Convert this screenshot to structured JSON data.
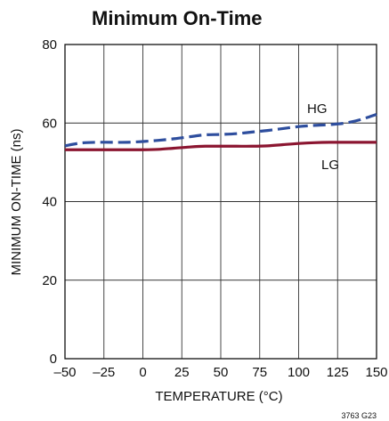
{
  "chart_data": {
    "type": "line",
    "title": "Minimum On-Time",
    "xlabel": "TEMPERATURE (°C)",
    "ylabel": "MINIMUM ON-TIME (ns)",
    "xlim": [
      -50,
      150
    ],
    "ylim": [
      0,
      80
    ],
    "xticks": [
      -50,
      -25,
      0,
      25,
      50,
      75,
      100,
      125,
      150
    ],
    "yticks": [
      0,
      20,
      40,
      60,
      80
    ],
    "xtick_labels": [
      "–50",
      "–25",
      "0",
      "25",
      "50",
      "75",
      "100",
      "125",
      "150"
    ],
    "ytick_labels": [
      "0",
      "20",
      "40",
      "60",
      "80"
    ],
    "grid": true,
    "series": [
      {
        "name": "HG",
        "color": "#2e4e9e",
        "dash": "dashed",
        "x": [
          -50,
          -40,
          -30,
          -20,
          -10,
          0,
          10,
          20,
          30,
          40,
          50,
          60,
          70,
          80,
          90,
          100,
          110,
          120,
          130,
          140,
          150
        ],
        "y": [
          54.2,
          54.9,
          55.1,
          55.1,
          55.1,
          55.3,
          55.6,
          56.0,
          56.5,
          57.0,
          57.1,
          57.3,
          57.7,
          58.1,
          58.6,
          59.1,
          59.4,
          59.6,
          60.0,
          60.9,
          62.2
        ]
      },
      {
        "name": "LG",
        "color": "#8b1530",
        "dash": "solid",
        "x": [
          -50,
          -40,
          -30,
          -20,
          -10,
          0,
          10,
          20,
          30,
          40,
          50,
          60,
          70,
          80,
          90,
          100,
          110,
          120,
          130,
          140,
          150
        ],
        "y": [
          53.2,
          53.2,
          53.2,
          53.2,
          53.2,
          53.2,
          53.3,
          53.6,
          53.9,
          54.1,
          54.1,
          54.1,
          54.1,
          54.2,
          54.5,
          54.8,
          55.0,
          55.1,
          55.1,
          55.1,
          55.1
        ]
      }
    ],
    "annotations": {
      "hg_label": "HG",
      "lg_label": "LG",
      "figure_code": "3763 G23"
    }
  }
}
